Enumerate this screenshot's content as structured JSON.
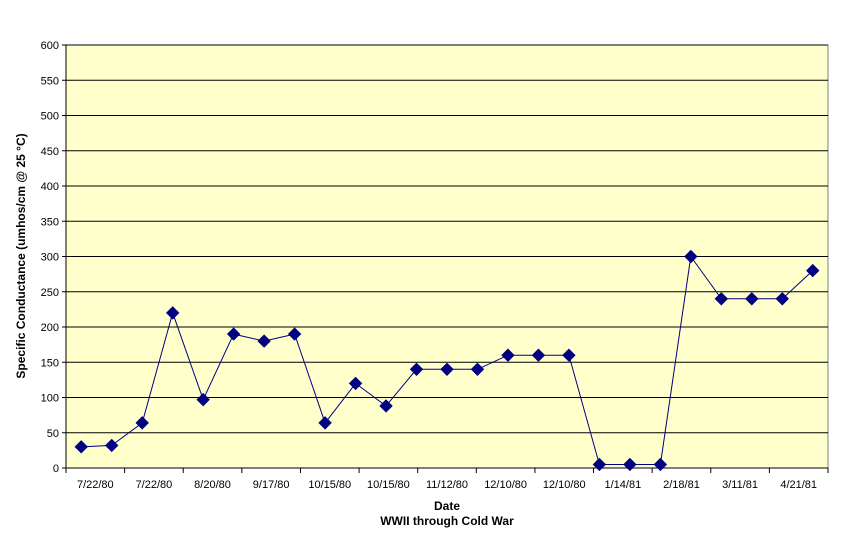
{
  "chart_data": {
    "type": "line",
    "title": "",
    "xlabel": "Date",
    "xlabel_subtitle": "WWII through Cold War",
    "ylabel": "Specific Conductance (umhos/cm @ 25 °C)",
    "ylim": [
      0,
      600
    ],
    "yticks": [
      0,
      50,
      100,
      150,
      200,
      250,
      300,
      350,
      400,
      450,
      500,
      550,
      600
    ],
    "grid": true,
    "legend": "none",
    "colors": {
      "plot_background": "#ffffcc",
      "series": "#000080",
      "line": "#000080",
      "gridline": "#000000"
    },
    "x_tick_labels": [
      "7/22/80",
      "7/22/80",
      "8/20/80",
      "9/17/80",
      "10/15/80",
      "10/15/80",
      "11/12/80",
      "12/10/80",
      "12/10/80",
      "1/14/81",
      "2/18/81",
      "3/11/81",
      "4/21/81"
    ],
    "series": [
      {
        "values": [
          30,
          32,
          64,
          220,
          97,
          190,
          180,
          190,
          64,
          120,
          88,
          140,
          140,
          140,
          160,
          160,
          160,
          5,
          5,
          5,
          300,
          240,
          240,
          240,
          280
        ]
      }
    ]
  }
}
